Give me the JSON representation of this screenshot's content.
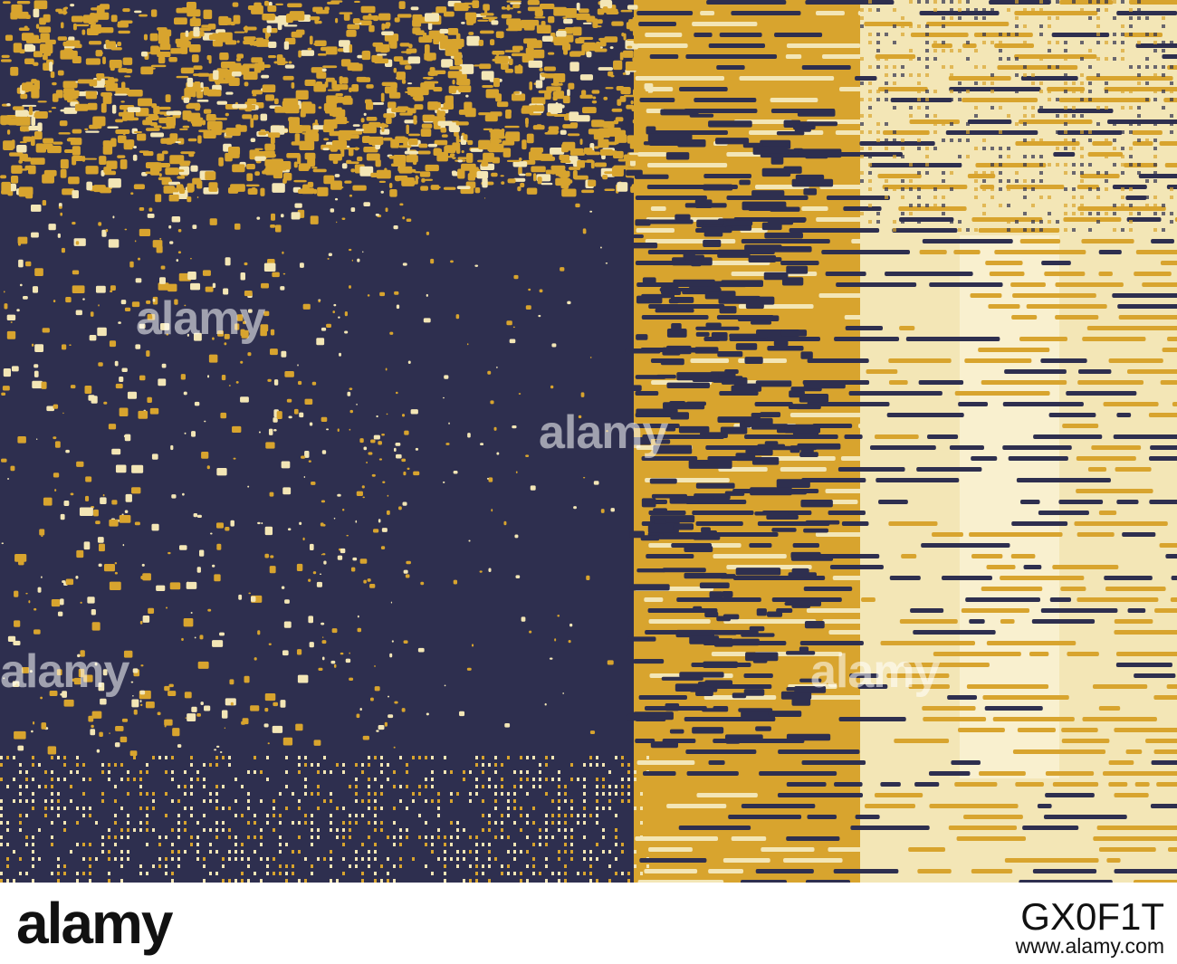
{
  "image": {
    "description_colors": {
      "navy": "#2e2f4f",
      "mustard": "#d8a42e",
      "cream": "#f3e6b6",
      "pale": "#faf3d6"
    }
  },
  "watermarks": [
    "alamy",
    "alamy",
    "alamy",
    "alamy"
  ],
  "footer": {
    "logo": "alamy",
    "image_id": "GX0F1T",
    "url": "www.alamy.com"
  }
}
